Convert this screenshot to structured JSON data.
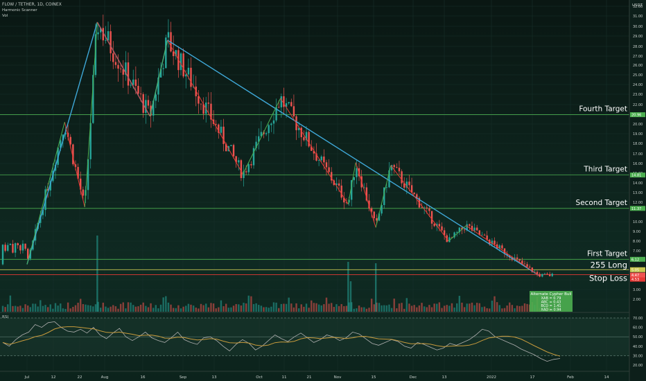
{
  "header": {
    "symbol_line": "FLOW / TETHER, 1D, COINEX",
    "indicator_1": "Harmonic Scanner",
    "indicator_2": "Vol"
  },
  "rsi_panel": {
    "label": "RSI"
  },
  "colors": {
    "background": "#0d1f1a",
    "up_candle": "#26a69a",
    "down_candle": "#ef5350",
    "pattern_blue": "#3fa9d9",
    "pattern_green": "#4caf50",
    "pattern_red": "#e53935",
    "level_green": "#4caf50",
    "entry_yellow": "#c8c850",
    "stop_red": "#e53935",
    "rsi_line": "#b0b0b0",
    "rsi_ma": "#c89b3c"
  },
  "chart_data": [
    {
      "type": "candlestick",
      "title": "FLOW / TETHER, 1D, COINEX",
      "y_unit": "USDT",
      "y_ticks": [
        "32.00",
        "31.00",
        "30.00",
        "29.00",
        "28.00",
        "27.00",
        "26.00",
        "25.00",
        "24.00",
        "23.00",
        "22.00",
        "21.00",
        "20.00",
        "19.00",
        "18.00",
        "17.00",
        "16.00",
        "15.00",
        "14.00",
        "13.00",
        "12.00",
        "10.00",
        "9.00",
        "8.00",
        "7.00",
        "6.00",
        "5.00",
        "4.00",
        "3.00",
        "2.00"
      ],
      "x_ticks": [
        "Jul",
        "12",
        "22",
        "Aug",
        "16",
        "Sep",
        "13",
        "Oct",
        "11",
        "21",
        "Nov",
        "15",
        "Dec",
        "13",
        "2022",
        "17",
        "Feb",
        "14"
      ],
      "levels": [
        {
          "name": "Fourth Target",
          "value": 20.96,
          "tag": "20.96"
        },
        {
          "name": "Third Target",
          "value": 14.81,
          "tag": "14.81"
        },
        {
          "name": "Second Target",
          "value": 11.37,
          "tag": "11.37"
        },
        {
          "name": "First Target",
          "value": 6.12,
          "tag": "6.12"
        },
        {
          "name": "255 Long",
          "value": 5.05,
          "tag": "5.05"
        },
        {
          "name": "Stop Loss",
          "value": 4.53,
          "tag": "4.53"
        }
      ],
      "price_tag_current": "4.47",
      "pattern_box_title": "Alternate Cypher Bull",
      "pattern_box_lines": [
        "XAB = 0.79",
        "ABC = 0.43",
        "BCD = 1.41",
        "XAD = 0.94"
      ],
      "zigzag_pivots": [
        {
          "date": "2021-07-01",
          "price": 5.6
        },
        {
          "date": "2021-07-16",
          "price": 20.2
        },
        {
          "date": "2021-07-24",
          "price": 11.5
        },
        {
          "date": "2021-07-29",
          "price": 30.4
        },
        {
          "date": "2021-08-19",
          "price": 20.8
        },
        {
          "date": "2021-08-26",
          "price": 28.6
        },
        {
          "date": "2021-09-25",
          "price": 14.9
        },
        {
          "date": "2021-10-10",
          "price": 22.6
        },
        {
          "date": "2021-11-06",
          "price": 11.8
        },
        {
          "date": "2021-11-09",
          "price": 16.1
        },
        {
          "date": "2021-11-17",
          "price": 9.4
        },
        {
          "date": "2021-11-23",
          "price": 15.8
        },
        {
          "date": "2021-12-16",
          "price": 8.0
        },
        {
          "date": "2021-12-23",
          "price": 9.6
        },
        {
          "date": "2022-01-21",
          "price": 4.47
        }
      ]
    },
    {
      "type": "line",
      "title": "RSI",
      "y_ticks": [
        "70.00",
        "60.00",
        "50.00",
        "40.00",
        "30.00",
        "20.00"
      ],
      "ylim": [
        15,
        75
      ],
      "bands": [
        30,
        50,
        70
      ],
      "series": [
        {
          "name": "",
          "values": [
            44,
            40,
            47,
            52,
            55,
            63,
            60,
            65,
            66,
            60,
            56,
            55,
            58,
            54,
            60,
            52,
            48,
            54,
            59,
            50,
            46,
            50,
            55,
            49,
            46,
            44,
            49,
            55,
            47,
            44,
            42,
            49,
            50,
            46,
            40,
            35,
            42,
            47,
            43,
            36,
            40,
            46,
            52,
            48,
            45,
            50,
            54,
            49,
            44,
            47,
            52,
            50,
            46,
            49,
            55,
            53,
            48,
            43,
            41,
            44,
            47,
            45,
            40,
            38,
            44,
            42,
            39,
            36,
            38,
            43,
            41,
            44,
            47,
            52,
            58,
            56,
            50,
            47,
            44,
            41,
            37,
            34,
            31,
            27,
            24,
            26,
            27
          ]
        }
      ]
    }
  ]
}
